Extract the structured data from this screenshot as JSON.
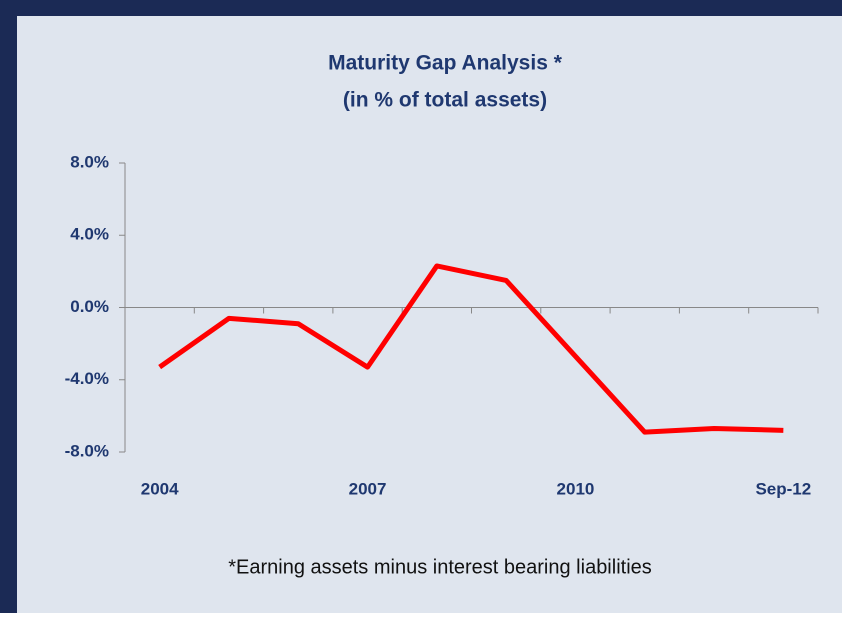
{
  "chart_data": {
    "type": "line",
    "title": "Maturity Gap Analysis *",
    "subtitle": "(in % of total assets)",
    "footnote": "*Earning assets minus interest bearing liabilities",
    "categories": [
      "2004",
      null,
      null,
      "2007",
      null,
      null,
      "2010",
      null,
      null,
      "Sep-12"
    ],
    "series": [
      {
        "name": "Maturity gap",
        "color": "#ff0000",
        "values": [
          -3.3,
          -0.6,
          -0.9,
          -3.3,
          2.3,
          1.5,
          -2.7,
          -6.9,
          -6.7,
          -6.8
        ]
      }
    ],
    "ylim": [
      -8,
      8
    ],
    "yticks": [
      {
        "value": 8,
        "label": "8.0%"
      },
      {
        "value": 4,
        "label": "4.0%"
      },
      {
        "value": 0,
        "label": "0.0%"
      },
      {
        "value": -4,
        "label": "-4.0%"
      },
      {
        "value": -8,
        "label": "-8.0%"
      }
    ],
    "legend": false
  }
}
